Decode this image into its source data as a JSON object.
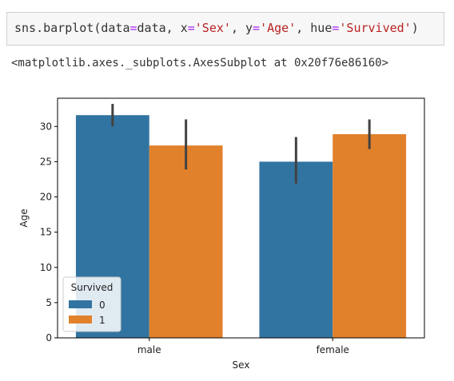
{
  "input_cell": {
    "tokens": [
      {
        "text": "sns.barplot(data",
        "kind": "plain"
      },
      {
        "text": "=",
        "kind": "eq"
      },
      {
        "text": "data, x",
        "kind": "plain"
      },
      {
        "text": "=",
        "kind": "eq"
      },
      {
        "text": "'Sex'",
        "kind": "str"
      },
      {
        "text": ", y",
        "kind": "plain"
      },
      {
        "text": "=",
        "kind": "eq"
      },
      {
        "text": "'Age'",
        "kind": "str"
      },
      {
        "text": ", hue",
        "kind": "plain"
      },
      {
        "text": "=",
        "kind": "eq"
      },
      {
        "text": "'Survived'",
        "kind": "str"
      },
      {
        "text": ")",
        "kind": "plain"
      }
    ]
  },
  "output_cell": {
    "text": "<matplotlib.axes._subplots.AxesSubplot at 0x20f76e86160>"
  },
  "colors": {
    "series_0": "#3274a1",
    "series_1": "#e1812c",
    "errorbar": "#424242"
  },
  "chart_data": {
    "type": "bar",
    "xlabel": "Sex",
    "ylabel": "Age",
    "categories": [
      "male",
      "female"
    ],
    "ylim": [
      0,
      34
    ],
    "yticks": [
      0,
      5,
      10,
      15,
      20,
      25,
      30
    ],
    "legend": {
      "title": "Survived",
      "placement": "lower-left"
    },
    "series": [
      {
        "name": "0",
        "values": [
          31.6,
          25.0
        ],
        "ci": [
          [
            30.0,
            33.2
          ],
          [
            21.9,
            28.5
          ]
        ]
      },
      {
        "name": "1",
        "values": [
          27.3,
          28.9
        ],
        "ci": [
          [
            23.9,
            31.0
          ],
          [
            26.8,
            31.0
          ]
        ]
      }
    ]
  }
}
